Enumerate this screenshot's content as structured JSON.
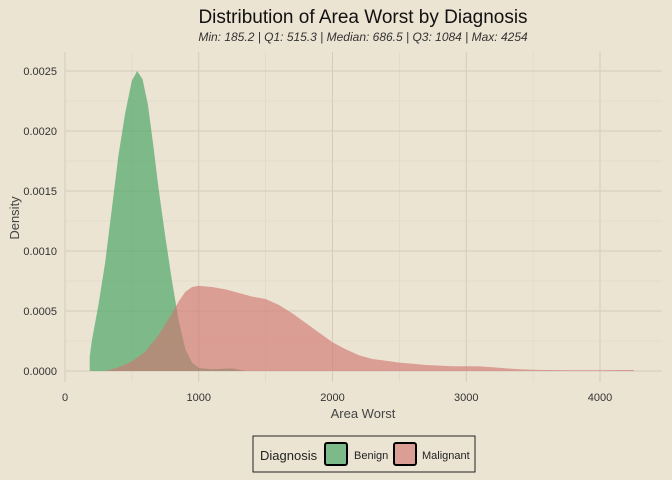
{
  "chart_data": {
    "type": "area",
    "title": "Distribution of Area Worst by Diagnosis",
    "subtitle": "Min: 185.2 | Q1: 515.3 | Median: 686.5 | Q3: 1084 | Max: 4254",
    "xlabel": "Area Worst",
    "ylabel": "Density",
    "xlim": [
      0,
      4500
    ],
    "ylim": [
      0,
      0.0026
    ],
    "x_ticks": [
      "0",
      "1000",
      "2000",
      "3000",
      "4000"
    ],
    "x_tick_values": [
      0,
      1000,
      2000,
      3000,
      4000
    ],
    "y_ticks": [
      "0.0000",
      "0.0005",
      "0.0010",
      "0.0015",
      "0.0020",
      "0.0025"
    ],
    "y_tick_values": [
      0,
      0.0005,
      0.001,
      0.0015,
      0.002,
      0.0025
    ],
    "grid": true,
    "legend": {
      "title": "Diagnosis",
      "position": "bottom"
    },
    "series": [
      {
        "name": "Benign",
        "color": "#3aa05c",
        "points": [
          [
            185,
            0.00012
          ],
          [
            200,
            0.00025
          ],
          [
            250,
            0.00055
          ],
          [
            300,
            0.0009
          ],
          [
            350,
            0.00135
          ],
          [
            400,
            0.0018
          ],
          [
            450,
            0.00215
          ],
          [
            500,
            0.00242
          ],
          [
            540,
            0.0025
          ],
          [
            580,
            0.00243
          ],
          [
            620,
            0.00222
          ],
          [
            660,
            0.00188
          ],
          [
            700,
            0.00152
          ],
          [
            750,
            0.00112
          ],
          [
            800,
            0.00075
          ],
          [
            850,
            0.00042
          ],
          [
            900,
            0.00018
          ],
          [
            950,
            7e-05
          ],
          [
            1000,
            2.5e-05
          ],
          [
            1100,
            1.5e-05
          ],
          [
            1200,
            2e-05
          ],
          [
            1250,
            2.2e-05
          ],
          [
            1300,
            1e-05
          ],
          [
            1350,
            0.0
          ]
        ]
      },
      {
        "name": "Malignant",
        "color": "#d0726f",
        "points": [
          [
            300,
            0.0
          ],
          [
            400,
            3e-05
          ],
          [
            500,
            8e-05
          ],
          [
            600,
            0.00016
          ],
          [
            700,
            0.0003
          ],
          [
            800,
            0.00048
          ],
          [
            850,
            0.00058
          ],
          [
            900,
            0.00066
          ],
          [
            950,
            0.0007
          ],
          [
            1000,
            0.00071
          ],
          [
            1100,
            0.0007
          ],
          [
            1200,
            0.00068
          ],
          [
            1300,
            0.00065
          ],
          [
            1400,
            0.00062
          ],
          [
            1500,
            0.0006
          ],
          [
            1600,
            0.00055
          ],
          [
            1700,
            0.00048
          ],
          [
            1800,
            0.0004
          ],
          [
            1900,
            0.00032
          ],
          [
            2000,
            0.00024
          ],
          [
            2100,
            0.00018
          ],
          [
            2200,
            0.00013
          ],
          [
            2300,
            0.0001
          ],
          [
            2400,
            8.5e-05
          ],
          [
            2500,
            7e-05
          ],
          [
            2600,
            6e-05
          ],
          [
            2700,
            5e-05
          ],
          [
            2800,
            4.5e-05
          ],
          [
            2900,
            4e-05
          ],
          [
            3000,
            4e-05
          ],
          [
            3100,
            3.8e-05
          ],
          [
            3200,
            3.2e-05
          ],
          [
            3300,
            2.2e-05
          ],
          [
            3400,
            1.4e-05
          ],
          [
            3500,
            1e-05
          ],
          [
            3600,
            8e-06
          ],
          [
            3800,
            6e-06
          ],
          [
            4000,
            6e-06
          ],
          [
            4150,
            8e-06
          ],
          [
            4254,
            8e-06
          ]
        ]
      }
    ]
  }
}
